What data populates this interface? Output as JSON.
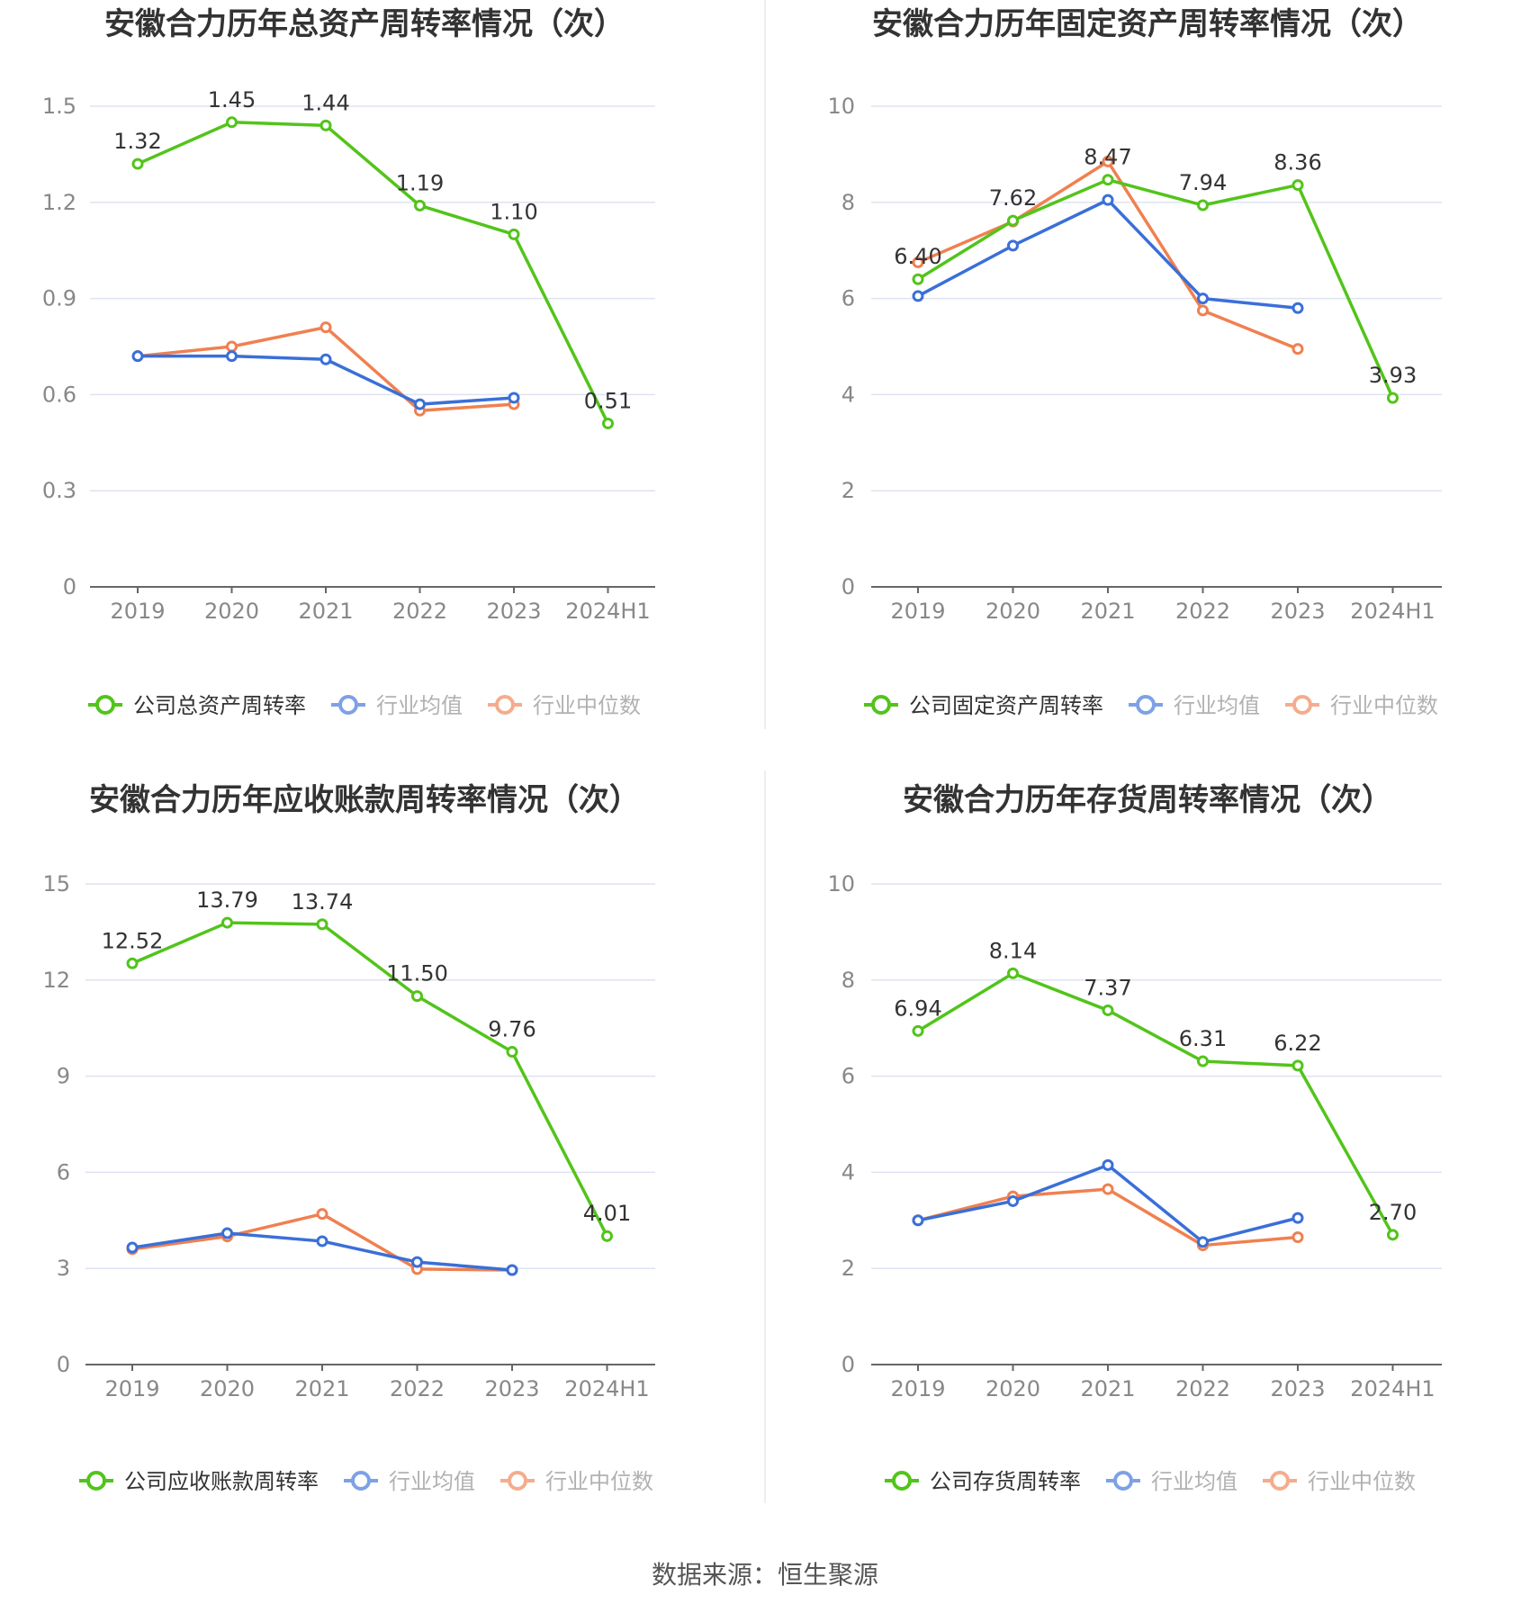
{
  "colors": {
    "company": "#52c41a",
    "industry_avg": "#3a6fd8",
    "industry_median": "#f08050",
    "grid": "#dde3f0",
    "axis": "#666666",
    "tick_text": "#888888",
    "title_text": "#333333",
    "value_text": "#333333"
  },
  "source": "数据来源：恒生聚源",
  "chart_data": [
    {
      "type": "line",
      "title": "安徽合力历年总资产周转率情况（次）",
      "categories": [
        "2019",
        "2020",
        "2021",
        "2022",
        "2023",
        "2024H1"
      ],
      "y_ticks": [
        "0",
        "0.3",
        "0.6",
        "0.9",
        "1.2",
        "1.5"
      ],
      "ylim": [
        0,
        1.5
      ],
      "grid": true,
      "legend_position": "bottom",
      "series": [
        {
          "name": "公司总资产周转率",
          "role": "company",
          "values": [
            1.32,
            1.45,
            1.44,
            1.19,
            1.1,
            0.51
          ],
          "labels": [
            "1.32",
            "1.45",
            "1.44",
            "1.19",
            "1.10",
            "0.51"
          ]
        },
        {
          "name": "行业均值",
          "role": "industry_avg",
          "values": [
            0.72,
            0.72,
            0.71,
            0.57,
            0.59,
            null
          ]
        },
        {
          "name": "行业中位数",
          "role": "industry_median",
          "values": [
            0.72,
            0.75,
            0.81,
            0.55,
            0.57,
            null
          ]
        }
      ]
    },
    {
      "type": "line",
      "title": "安徽合力历年固定资产周转率情况（次）",
      "categories": [
        "2019",
        "2020",
        "2021",
        "2022",
        "2023",
        "2024H1"
      ],
      "y_ticks": [
        "0",
        "2",
        "4",
        "6",
        "8",
        "10"
      ],
      "ylim": [
        0,
        10
      ],
      "grid": true,
      "legend_position": "bottom",
      "series": [
        {
          "name": "公司固定资产周转率",
          "role": "company",
          "values": [
            6.4,
            7.62,
            8.47,
            7.94,
            8.36,
            3.93
          ],
          "labels": [
            "6.40",
            "7.62",
            "8.47",
            "7.94",
            "8.36",
            "3.93"
          ]
        },
        {
          "name": "行业均值",
          "role": "industry_avg",
          "values": [
            6.05,
            7.1,
            8.05,
            6.0,
            5.8,
            null
          ]
        },
        {
          "name": "行业中位数",
          "role": "industry_median",
          "values": [
            6.75,
            7.6,
            8.85,
            5.75,
            4.95,
            null
          ]
        }
      ]
    },
    {
      "type": "line",
      "title": "安徽合力历年应收账款周转率情况（次）",
      "categories": [
        "2019",
        "2020",
        "2021",
        "2022",
        "2023",
        "2024H1"
      ],
      "y_ticks": [
        "0",
        "3",
        "6",
        "9",
        "12",
        "15"
      ],
      "ylim": [
        0,
        15
      ],
      "grid": true,
      "legend_position": "bottom",
      "series": [
        {
          "name": "公司应收账款周转率",
          "role": "company",
          "values": [
            12.52,
            13.79,
            13.74,
            11.5,
            9.76,
            4.01
          ],
          "labels": [
            "12.52",
            "13.79",
            "13.74",
            "11.50",
            "9.76",
            "4.01"
          ]
        },
        {
          "name": "行业均值",
          "role": "industry_avg",
          "values": [
            3.65,
            4.1,
            3.85,
            3.2,
            2.95,
            null
          ]
        },
        {
          "name": "行业中位数",
          "role": "industry_median",
          "values": [
            3.6,
            4.0,
            4.7,
            2.98,
            2.95,
            null
          ]
        }
      ]
    },
    {
      "type": "line",
      "title": "安徽合力历年存货周转率情况（次）",
      "categories": [
        "2019",
        "2020",
        "2021",
        "2022",
        "2023",
        "2024H1"
      ],
      "y_ticks": [
        "0",
        "2",
        "4",
        "6",
        "8",
        "10"
      ],
      "ylim": [
        0,
        10
      ],
      "grid": true,
      "legend_position": "bottom",
      "series": [
        {
          "name": "公司存货周转率",
          "role": "company",
          "values": [
            6.94,
            8.14,
            7.37,
            6.31,
            6.22,
            2.7
          ],
          "labels": [
            "6.94",
            "8.14",
            "7.37",
            "6.31",
            "6.22",
            "2.70"
          ]
        },
        {
          "name": "行业均值",
          "role": "industry_avg",
          "values": [
            3.0,
            3.4,
            4.15,
            2.55,
            3.05,
            null
          ]
        },
        {
          "name": "行业中位数",
          "role": "industry_median",
          "values": [
            3.0,
            3.5,
            3.65,
            2.48,
            2.65,
            null
          ]
        }
      ]
    }
  ]
}
